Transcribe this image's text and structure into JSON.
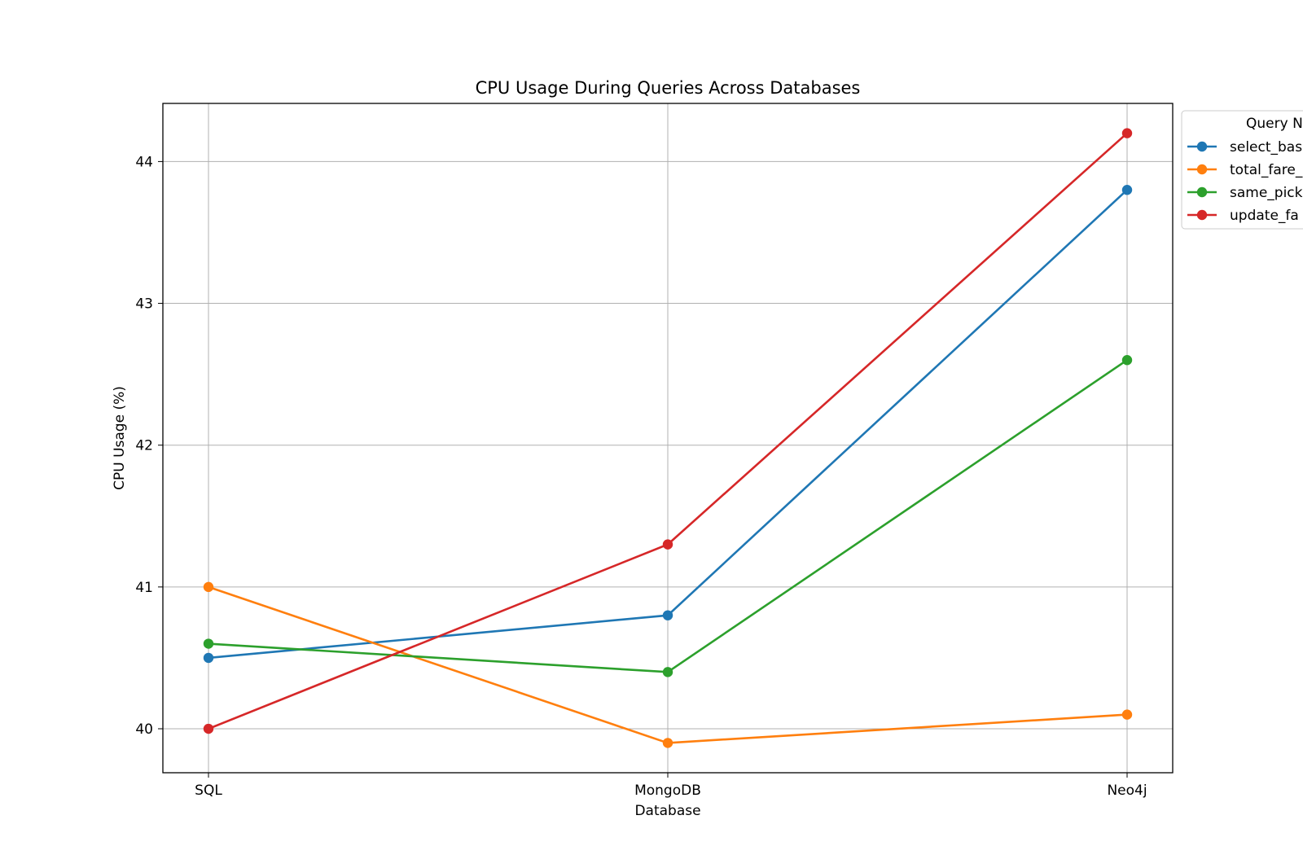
{
  "chart_data": {
    "type": "line",
    "title": "CPU Usage During Queries Across Databases",
    "xlabel": "Database",
    "ylabel": "CPU Usage (%)",
    "categories": [
      "SQL",
      "MongoDB",
      "Neo4j"
    ],
    "ylim": [
      39.69,
      44.41
    ],
    "yticks": [
      40,
      41,
      42,
      43,
      44
    ],
    "grid": true,
    "legend": {
      "title": "Query N",
      "placement": "outside-right-top",
      "clipped": true
    },
    "series": [
      {
        "name": "select_bas",
        "color": "#1f77b4",
        "values": [
          40.5,
          40.8,
          43.8
        ]
      },
      {
        "name": "total_fare_",
        "color": "#ff7f0e",
        "values": [
          41.0,
          39.9,
          40.1
        ]
      },
      {
        "name": "same_pick",
        "color": "#2ca02c",
        "values": [
          40.6,
          40.4,
          42.6
        ]
      },
      {
        "name": "update_fa",
        "color": "#d62728",
        "values": [
          40.0,
          41.3,
          44.2
        ]
      }
    ]
  }
}
